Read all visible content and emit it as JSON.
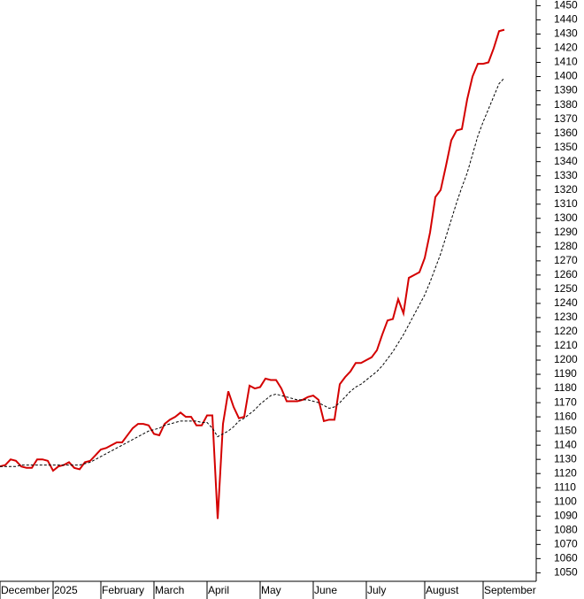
{
  "chart_data": {
    "type": "line",
    "categories": [
      "December",
      null,
      null,
      null,
      null,
      null,
      null,
      null,
      null,
      null,
      "2025",
      null,
      null,
      null,
      null,
      null,
      null,
      null,
      null,
      "February",
      null,
      null,
      null,
      null,
      null,
      null,
      null,
      null,
      null,
      "March",
      null,
      null,
      null,
      null,
      null,
      null,
      null,
      null,
      null,
      "April",
      null,
      null,
      null,
      null,
      null,
      null,
      null,
      null,
      null,
      "May",
      null,
      null,
      null,
      null,
      null,
      null,
      null,
      null,
      null,
      "June",
      null,
      null,
      null,
      null,
      null,
      null,
      null,
      null,
      null,
      "July",
      null,
      null,
      null,
      null,
      null,
      null,
      null,
      null,
      null,
      null,
      "August",
      null,
      null,
      null,
      null,
      null,
      null,
      null,
      null,
      null,
      null,
      "September",
      null,
      null,
      null,
      null,
      null,
      null,
      null,
      null,
      null
    ],
    "series": [
      {
        "color": "#d40000",
        "dashed": false,
        "values": [
          1125,
          1126,
          1130,
          1129,
          1125,
          1124,
          1124,
          1130,
          1130,
          1129,
          1122,
          1125,
          1126,
          1128,
          1124,
          1123,
          1128,
          1129,
          1133,
          1137,
          1138,
          1140,
          1142,
          1142,
          1147,
          1152,
          1155,
          1155,
          1154,
          1148,
          1147,
          1155,
          1158,
          1160,
          1163,
          1160,
          1160,
          1154,
          1154,
          1161,
          1161,
          1088,
          1155,
          1178,
          1167,
          1159,
          1160,
          1182,
          1180,
          1181,
          1187,
          1186,
          1186,
          1180,
          1171,
          1171,
          1171,
          1172,
          1174,
          1175,
          1172,
          1157,
          1158,
          1158,
          1183,
          1188,
          1192,
          1198,
          1198,
          1200,
          1202,
          1207,
          1218,
          1228,
          1229,
          1243,
          1233,
          1258,
          1260,
          1262,
          1272,
          1290,
          1315,
          1320,
          1337,
          1355,
          1362,
          1363,
          1384,
          1400,
          1409,
          1409,
          1410,
          1420,
          1432,
          1433,
          null,
          null,
          null,
          null,
          null
        ]
      },
      {
        "color": "#000000",
        "dashed": true,
        "values": [
          1125,
          1125,
          1125,
          1125,
          1126,
          1126,
          1126,
          1126,
          1126,
          1126,
          1126,
          1126,
          1126,
          1126,
          1126,
          1126,
          1127,
          1128,
          1130,
          1132,
          1134,
          1136,
          1138,
          1140,
          1142,
          1144,
          1146,
          1148,
          1150,
          1151,
          1152,
          1154,
          1155,
          1156,
          1157,
          1157,
          1157,
          1157,
          1156,
          1156,
          1152,
          1146,
          1148,
          1150,
          1153,
          1157,
          1159,
          1162,
          1165,
          1169,
          1172,
          1175,
          1176,
          1175,
          1174,
          1173,
          1172,
          1172,
          1172,
          1171,
          1170,
          1168,
          1166,
          1167,
          1170,
          1174,
          1178,
          1181,
          1183,
          1186,
          1189,
          1192,
          1196,
          1201,
          1206,
          1212,
          1218,
          1225,
          1232,
          1239,
          1246,
          1255,
          1265,
          1275,
          1287,
          1299,
          1311,
          1322,
          1332,
          1345,
          1358,
          1368,
          1377,
          1386,
          1395,
          1399,
          null,
          null,
          null,
          null,
          null
        ]
      }
    ],
    "ylim": [
      1044,
      1454
    ],
    "yticks": [
      1050,
      1060,
      1070,
      1080,
      1090,
      1100,
      1110,
      1120,
      1130,
      1140,
      1150,
      1160,
      1170,
      1180,
      1190,
      1200,
      1210,
      1220,
      1230,
      1240,
      1250,
      1260,
      1270,
      1280,
      1290,
      1300,
      1310,
      1320,
      1330,
      1340,
      1350,
      1360,
      1370,
      1380,
      1390,
      1400,
      1410,
      1420,
      1430,
      1440,
      1450
    ],
    "y_axis_side": "right"
  }
}
